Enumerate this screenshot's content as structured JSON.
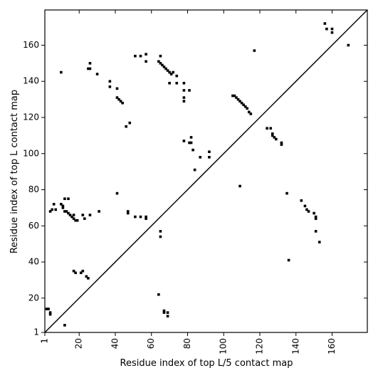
{
  "chart_data": {
    "type": "scatter",
    "x_label": "Residue index of top L/5 contact map",
    "y_label": "Residue index of top L contact map",
    "color": "#000000",
    "xlim": [
      1,
      179.5
    ],
    "ylim": [
      1,
      179.5
    ],
    "xticks": [
      1,
      20,
      40,
      60,
      80,
      100,
      120,
      140,
      160
    ],
    "yticks": [
      1,
      20,
      40,
      60,
      80,
      100,
      120,
      140,
      160
    ],
    "x": [
      10,
      25,
      26,
      26,
      30,
      37,
      37,
      41,
      41,
      42,
      43,
      44,
      51,
      54,
      57,
      57,
      65,
      64,
      65,
      66,
      67,
      68,
      69,
      70,
      71,
      72,
      70,
      74,
      78,
      78,
      81,
      78,
      78,
      74,
      117,
      105,
      106,
      107,
      108,
      109,
      110,
      111,
      112,
      113,
      114,
      115,
      124,
      126,
      127,
      127,
      128,
      129,
      132,
      132,
      78,
      81,
      82,
      82,
      83,
      84,
      87,
      92,
      92,
      46,
      48,
      41,
      109,
      156,
      157,
      160,
      160,
      169,
      2,
      3,
      4,
      4,
      12,
      64,
      67,
      67,
      69,
      69,
      4,
      5,
      7,
      6,
      10,
      11,
      11,
      12,
      13,
      14,
      15,
      16,
      17,
      18,
      19,
      17,
      12,
      14,
      22,
      23,
      26,
      31,
      17,
      18,
      21,
      22,
      24,
      25,
      47,
      47,
      51,
      54,
      57,
      57,
      65,
      65,
      135,
      143,
      145,
      146,
      147,
      150,
      151,
      151,
      151,
      153,
      136
    ],
    "y": [
      145,
      147,
      147,
      150,
      144,
      140,
      137,
      136,
      131,
      130,
      129,
      128,
      154,
      154,
      155,
      151,
      154,
      151,
      150,
      149,
      148,
      147,
      146,
      145,
      144,
      145,
      139,
      139,
      139,
      135,
      135,
      131,
      129,
      143,
      157,
      132,
      132,
      131,
      130,
      129,
      128,
      127,
      126,
      125,
      123,
      122,
      114,
      114,
      111,
      110,
      109,
      108,
      106,
      105,
      107,
      106,
      109,
      106,
      102,
      91,
      98,
      101,
      98,
      115,
      117,
      78,
      82,
      172,
      169,
      169,
      167,
      160,
      14,
      14,
      12,
      11,
      5,
      22,
      13,
      12,
      12,
      10,
      68,
      69,
      69,
      72,
      72,
      71,
      70,
      68,
      68,
      67,
      66,
      65,
      64,
      63,
      63,
      66,
      75,
      75,
      66,
      64,
      66,
      68,
      35,
      34,
      34,
      35,
      32,
      31,
      68,
      67,
      65,
      65,
      65,
      64,
      57,
      54,
      78,
      74,
      71,
      69,
      68,
      67,
      65,
      64,
      57,
      51,
      41
    ]
  }
}
